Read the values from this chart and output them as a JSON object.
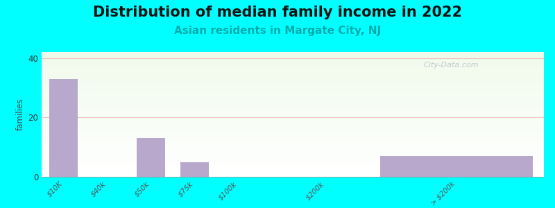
{
  "title": "Distribution of median family income in 2022",
  "subtitle": "Asian residents in Margate City, NJ",
  "categories": [
    "$10K",
    "$40k",
    "$50k",
    "$75k",
    "$100k",
    "$200k",
    "> $200k"
  ],
  "values": [
    33,
    0,
    13,
    5,
    0,
    0,
    7
  ],
  "bar_color": "#b8a8cc",
  "ylabel": "families",
  "ylim": [
    0,
    42
  ],
  "yticks": [
    0,
    20,
    40
  ],
  "background_outer": "#00ffff",
  "title_fontsize": 15,
  "subtitle_fontsize": 11,
  "subtitle_color": "#00aaaa",
  "watermark": "City-Data.com",
  "grid_color": "#e8a0a0",
  "grid_alpha": 0.6,
  "x_positions": [
    0,
    1,
    2,
    3,
    4,
    6,
    9
  ],
  "bar_widths": [
    0.65,
    0.65,
    0.65,
    0.65,
    0.65,
    0.65,
    3.5
  ],
  "xlim": [
    -0.5,
    11.0
  ]
}
